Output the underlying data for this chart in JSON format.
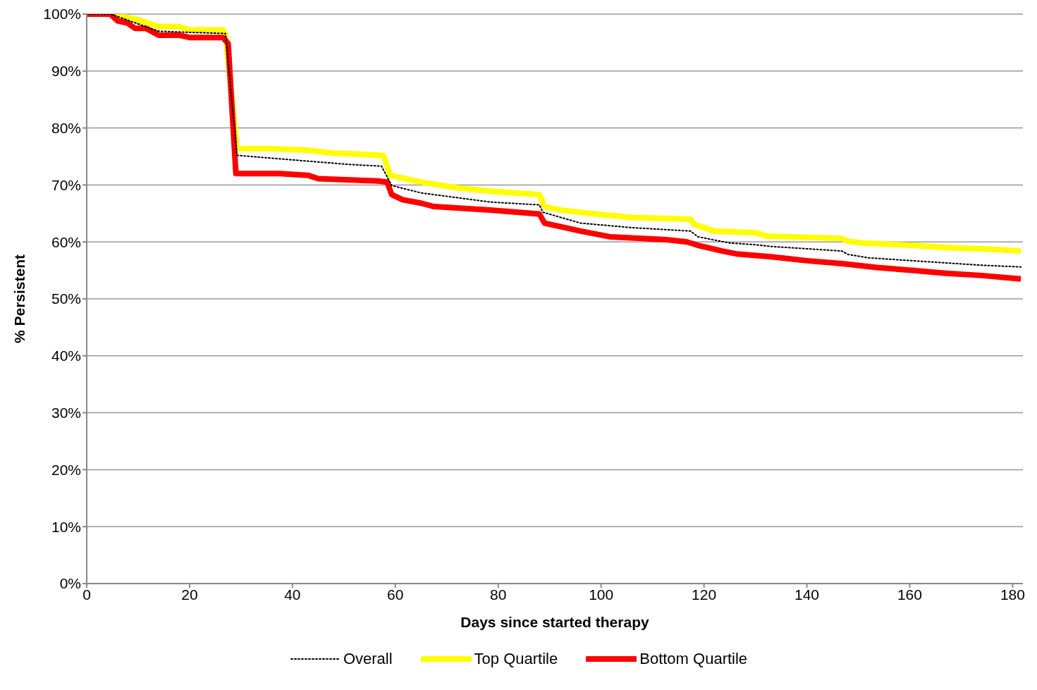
{
  "chart_data": {
    "type": "line",
    "xlabel": "Days since started therapy",
    "ylabel": "% Persistent",
    "xlim": [
      0,
      182
    ],
    "xticks": [
      0,
      20,
      40,
      60,
      80,
      100,
      120,
      140,
      160,
      180
    ],
    "ylim": [
      0,
      100
    ],
    "yticks": [
      {
        "value": 0,
        "label": "0%"
      },
      {
        "value": 10,
        "label": "10%"
      },
      {
        "value": 20,
        "label": "20%"
      },
      {
        "value": 30,
        "label": "30%"
      },
      {
        "value": 40,
        "label": "40%"
      },
      {
        "value": 50,
        "label": "50%"
      },
      {
        "value": 60,
        "label": "60%"
      },
      {
        "value": 70,
        "label": "70%"
      },
      {
        "value": 80,
        "label": "80%"
      },
      {
        "value": 90,
        "label": "90%"
      },
      {
        "value": 100,
        "label": "100%"
      }
    ],
    "grid": "y",
    "legend": "bottom",
    "marker": "none",
    "series": [
      {
        "name": "Overall",
        "color": "#000000",
        "line_style": "dotted",
        "x": [
          0,
          4.6,
          14,
          19.7,
          27,
          29.2,
          40,
          51,
          57.3,
          59.3,
          65,
          78.4,
          88,
          88.7,
          96,
          106,
          117.4,
          118.8,
          125,
          130,
          133,
          146.8,
          148,
          152,
          160.4,
          174,
          181.6
        ],
        "values": [
          100,
          100,
          97,
          96.8,
          96.6,
          75.2,
          74.4,
          73.6,
          73.3,
          69.9,
          68.6,
          67,
          66.5,
          65.2,
          63.3,
          62.5,
          61.9,
          60.9,
          59.8,
          59.5,
          59.2,
          58.4,
          57.8,
          57.2,
          56.7,
          55.9,
          55.6
        ]
      },
      {
        "name": "Top Quartile",
        "color": "#ffff00",
        "line_style": "solid",
        "x": [
          0,
          4.6,
          10,
          14,
          18,
          20,
          26.5,
          27,
          29.2,
          34.7,
          43,
          48,
          57.7,
          59,
          65,
          72,
          78.4,
          88,
          89,
          92,
          99,
          106,
          117.4,
          118,
          122,
          130,
          132.4,
          146.8,
          148,
          151,
          160.4,
          167,
          174,
          181.6
        ],
        "values": [
          100,
          100,
          99,
          97.8,
          97.8,
          97.2,
          97.2,
          96.3,
          76.4,
          76.4,
          76.1,
          75.6,
          75.2,
          71.7,
          70.5,
          69.5,
          68.9,
          68.3,
          66.2,
          65.6,
          64.9,
          64.3,
          64,
          63.1,
          61.9,
          61.6,
          61,
          60.6,
          60.1,
          59.8,
          59.4,
          59,
          58.8,
          58.4
        ]
      },
      {
        "name": "Bottom Quartile",
        "color": "#ff0000",
        "line_style": "solid",
        "x": [
          0,
          4.6,
          6,
          8,
          9.4,
          11.5,
          14,
          18,
          20,
          26.5,
          27.5,
          29,
          37.4,
          43,
          45,
          56.6,
          58.4,
          59.3,
          61.4,
          65,
          67.5,
          78.4,
          88,
          89,
          92,
          96,
          101.7,
          112.6,
          116.7,
          118.8,
          123.5,
          126.3,
          133,
          140,
          146.8,
          153.6,
          160.4,
          167,
          174,
          181.6
        ],
        "values": [
          100,
          100,
          98.8,
          98.4,
          97.5,
          97.5,
          96.3,
          96.3,
          95.9,
          95.9,
          94.8,
          72,
          72,
          71.7,
          71.1,
          70.7,
          70.5,
          68.3,
          67.4,
          66.8,
          66.2,
          65.6,
          64.9,
          63.3,
          62.7,
          61.9,
          60.9,
          60.4,
          60,
          59.4,
          58.4,
          57.9,
          57.4,
          56.7,
          56.2,
          55.5,
          55,
          54.5,
          54.1,
          53.5
        ]
      }
    ]
  }
}
